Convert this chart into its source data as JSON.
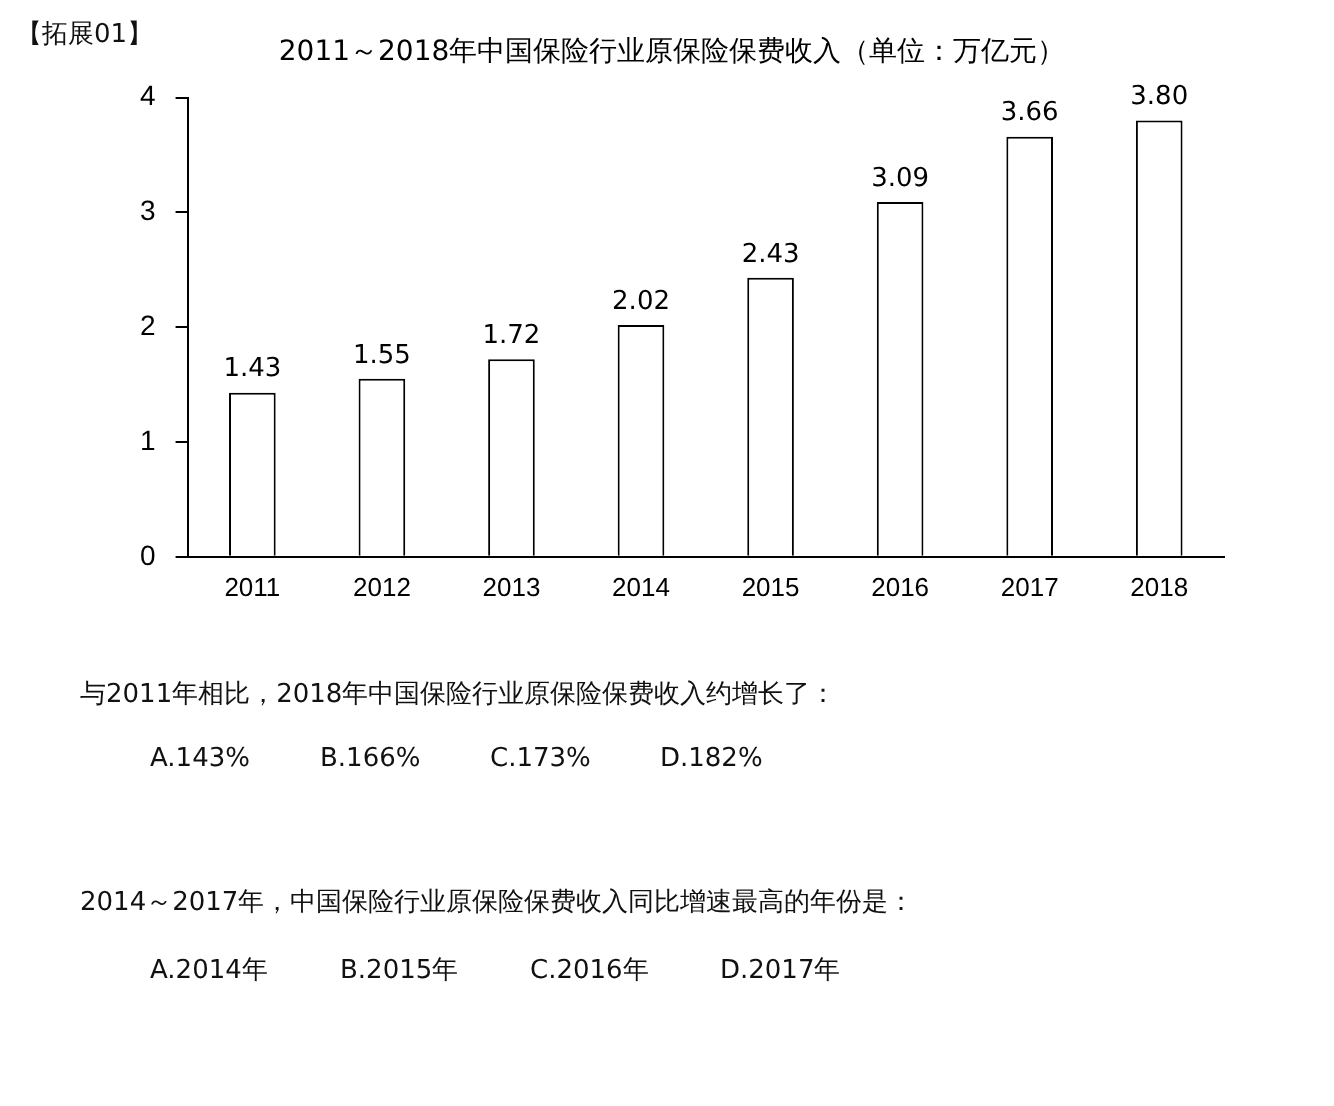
{
  "chart_data": {
    "type": "bar",
    "title": "2011～2018年中国保险行业原保险保费收入（单位：万亿元）",
    "categories": [
      "2011",
      "2012",
      "2013",
      "2014",
      "2015",
      "2016",
      "2017",
      "2018"
    ],
    "values": [
      1.43,
      1.55,
      1.72,
      2.02,
      2.43,
      3.09,
      3.66,
      3.8
    ],
    "value_labels": [
      "1.43",
      "1.55",
      "1.72",
      "2.02",
      "2.43",
      "3.09",
      "3.66",
      "3.80"
    ],
    "color": "#ffffff",
    "ylim": [
      0,
      4
    ],
    "yticks": [
      0,
      1,
      2,
      3,
      4
    ],
    "grid": false,
    "legend": false,
    "annotations": [
      "【拓展01】",
      "与2011年相比，2018年中国保险行业原保险保费收入约增长了：",
      "A.143%",
      "B.166%",
      "C.173%",
      "D.182%",
      "2014～2017年，中国保险行业原保险保费收入同比增速最高的年份是：",
      "A.2014年",
      "B.2015年",
      "C.2016年",
      "D.2017年"
    ]
  }
}
